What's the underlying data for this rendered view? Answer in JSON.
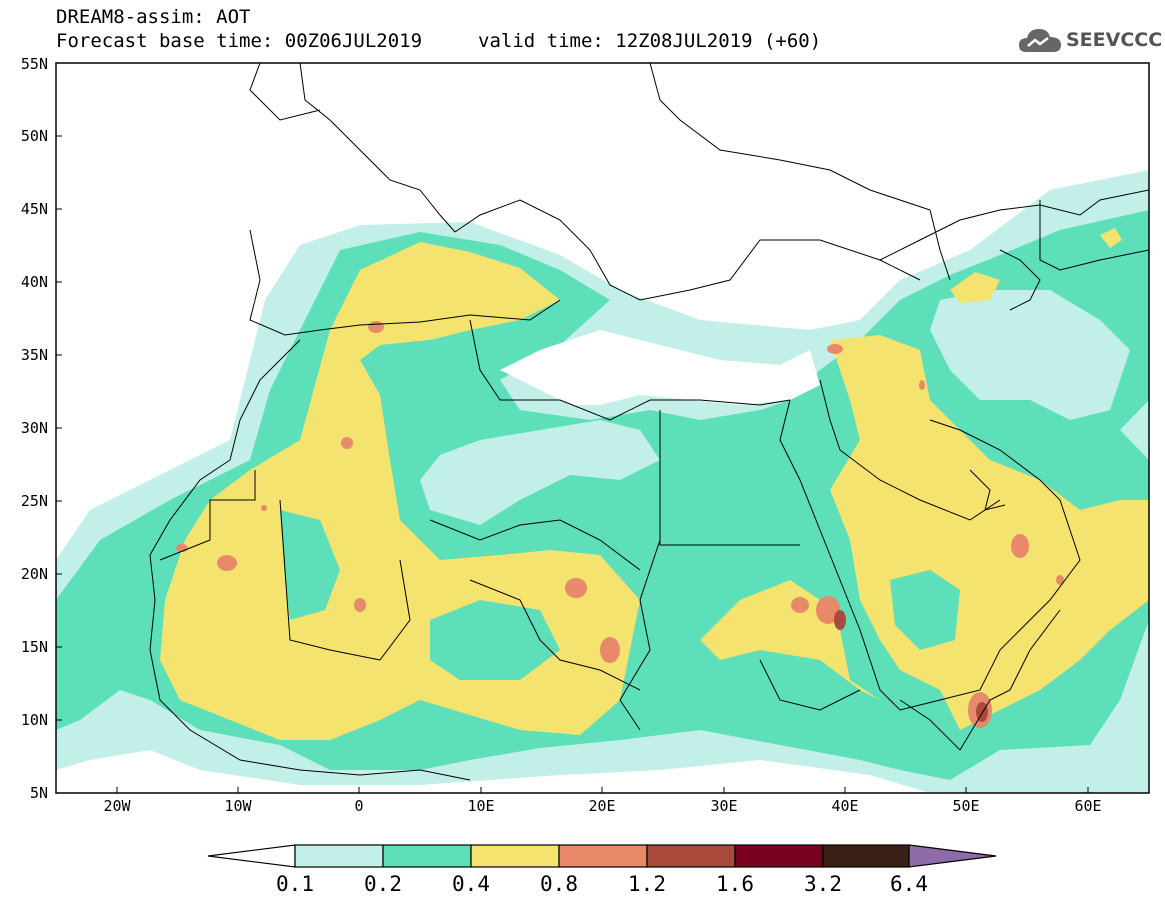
{
  "header": {
    "title": "DREAM8-assim: AOT",
    "base_time": "Forecast base time: 00Z06JUL2019",
    "valid_time": "valid time: 12Z08JUL2019 (+60)"
  },
  "logo": {
    "text": "SEEVCCC",
    "icon": "cloud-icon"
  },
  "map": {
    "lon_range": [
      -25,
      65
    ],
    "lat_range": [
      5,
      55
    ],
    "lat_labels": [
      "55N",
      "50N",
      "45N",
      "40N",
      "35N",
      "30N",
      "25N",
      "20N",
      "15N",
      "10N",
      "5N"
    ],
    "lon_labels": [
      "20W",
      "10W",
      "0",
      "10E",
      "20E",
      "30E",
      "40E",
      "50E",
      "60E"
    ]
  },
  "colorbar": {
    "labels": [
      "0.1",
      "0.2",
      "0.4",
      "0.8",
      "1.2",
      "1.6",
      "3.2",
      "6.4"
    ],
    "colors": [
      "#ffffff",
      "#c2f0e8",
      "#5ddfb9",
      "#f5e370",
      "#e8896a",
      "#a94a3c",
      "#7a0020",
      "#3a2015",
      "#8f6aa8"
    ]
  }
}
